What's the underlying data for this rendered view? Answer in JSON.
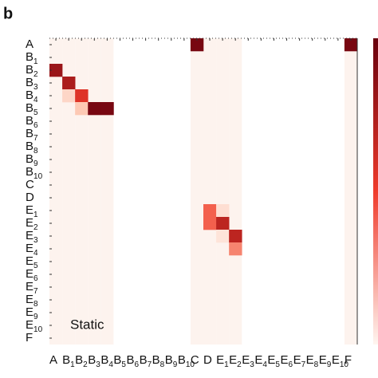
{
  "chart_data": {
    "type": "heatmap",
    "panel_label": "b",
    "annotation": "Static",
    "labels": [
      {
        "text": "A"
      },
      {
        "text": "B",
        "sub": "1"
      },
      {
        "text": "B",
        "sub": "2"
      },
      {
        "text": "B",
        "sub": "3"
      },
      {
        "text": "B",
        "sub": "4"
      },
      {
        "text": "B",
        "sub": "5"
      },
      {
        "text": "B",
        "sub": "6"
      },
      {
        "text": "B",
        "sub": "7"
      },
      {
        "text": "B",
        "sub": "8"
      },
      {
        "text": "B",
        "sub": "9"
      },
      {
        "text": "B",
        "sub": "10"
      },
      {
        "text": "C"
      },
      {
        "text": "D"
      },
      {
        "text": "E",
        "sub": "1"
      },
      {
        "text": "E",
        "sub": "2"
      },
      {
        "text": "E",
        "sub": "3"
      },
      {
        "text": "E",
        "sub": "4"
      },
      {
        "text": "E",
        "sub": "5"
      },
      {
        "text": "E",
        "sub": "6"
      },
      {
        "text": "E",
        "sub": "7"
      },
      {
        "text": "E",
        "sub": "8"
      },
      {
        "text": "E",
        "sub": "9"
      },
      {
        "text": "E",
        "sub": "10"
      },
      {
        "text": "F"
      }
    ],
    "shaded_columns": [
      0,
      1,
      2,
      3,
      4,
      11,
      12,
      13,
      14,
      23
    ],
    "shade_color": "#fdf3ee",
    "cells": [
      {
        "row": 0,
        "col": 11,
        "value": 0.95
      },
      {
        "row": 0,
        "col": 23,
        "value": 0.95
      },
      {
        "row": 2,
        "col": 0,
        "value": 0.85
      },
      {
        "row": 3,
        "col": 1,
        "value": 0.8
      },
      {
        "row": 4,
        "col": 1,
        "value": 0.15
      },
      {
        "row": 4,
        "col": 2,
        "value": 0.65
      },
      {
        "row": 5,
        "col": 2,
        "value": 0.2
      },
      {
        "row": 5,
        "col": 3,
        "value": 0.95
      },
      {
        "row": 5,
        "col": 4,
        "value": 0.95
      },
      {
        "row": 13,
        "col": 12,
        "value": 0.5
      },
      {
        "row": 13,
        "col": 13,
        "value": 0.12
      },
      {
        "row": 14,
        "col": 12,
        "value": 0.5
      },
      {
        "row": 14,
        "col": 13,
        "value": 0.75
      },
      {
        "row": 15,
        "col": 13,
        "value": 0.1
      },
      {
        "row": 15,
        "col": 14,
        "value": 0.75
      },
      {
        "row": 16,
        "col": 14,
        "value": 0.4
      }
    ]
  }
}
